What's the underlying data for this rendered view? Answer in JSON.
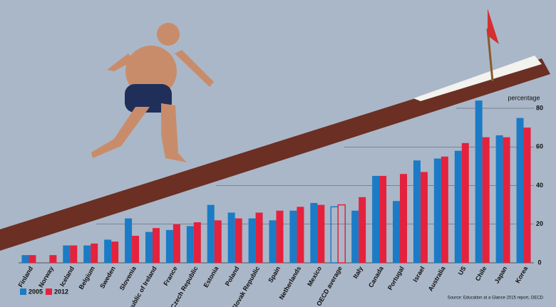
{
  "chart_data": {
    "type": "bar",
    "y_axis_label": "percentage",
    "categories": [
      "Finland",
      "Norway",
      "Iceland",
      "Belgium",
      "Sweden",
      "Slovenia",
      "Republic of Ireland",
      "France",
      "Czech Republic",
      "Estonia",
      "Poland",
      "Slovak Republic",
      "Spain",
      "Netherlands",
      "Mexico",
      "OECD average",
      "Italy",
      "Canada",
      "Portugal",
      "Israel",
      "Australia",
      "US",
      "Chile",
      "Japan",
      "Korea"
    ],
    "series": [
      {
        "name": "2005",
        "color": "#1b7bc6",
        "values": [
          4,
          null,
          9,
          9,
          12,
          23,
          16,
          17,
          19,
          30,
          26,
          23,
          22,
          27,
          31,
          29,
          27,
          45,
          32,
          53,
          54,
          58,
          84,
          66,
          75
        ]
      },
      {
        "name": "2012",
        "color": "#e4223d",
        "values": [
          4,
          4,
          9,
          10,
          11,
          14,
          18,
          20,
          21,
          22,
          23,
          26,
          27,
          29,
          30,
          30,
          34,
          45,
          46,
          47,
          55,
          62,
          65,
          65,
          70
        ]
      }
    ],
    "outlined_categories": [
      15
    ],
    "ylim": [
      0,
      80
    ],
    "yticks": [
      0,
      20,
      40,
      60,
      80
    ],
    "grid": true,
    "legend": "bottom-left",
    "source": "Source: Education at a Glance 2015 report, OECD"
  }
}
